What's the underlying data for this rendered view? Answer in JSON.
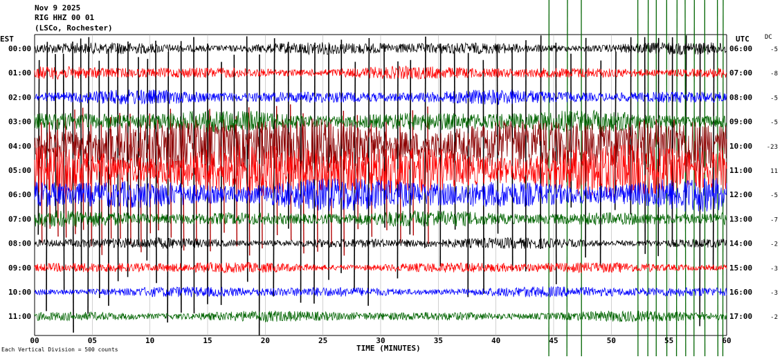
{
  "header": {
    "date": "Nov 9 2025",
    "station": "RIG HHZ 00 01",
    "location": "(LSCo, Rochester)"
  },
  "left_label": "EST",
  "right_label": "UTC",
  "dc_label": "DC",
  "footer_note": "Each Vertical Division = 500 counts",
  "chart_data": {
    "type": "line",
    "description_kind": "helicorder",
    "xlabel": "TIME (MINUTES)",
    "xlim": [
      0,
      60
    ],
    "x_ticks": [
      "00",
      "05",
      "10",
      "15",
      "20",
      "25",
      "30",
      "35",
      "40",
      "45",
      "50",
      "55",
      "60"
    ],
    "rows": [
      {
        "est": "00:00",
        "utc": "06:00",
        "dc": "-5",
        "color": "#000000",
        "amplitude": 0.35
      },
      {
        "est": "01:00",
        "utc": "07:00",
        "dc": "-8",
        "color": "#ff0000",
        "amplitude": 0.35
      },
      {
        "est": "02:00",
        "utc": "08:00",
        "dc": "-5",
        "color": "#0000ff",
        "amplitude": 0.4
      },
      {
        "est": "03:00",
        "utc": "09:00",
        "dc": "-5",
        "color": "#006400",
        "amplitude": 0.6
      },
      {
        "est": "04:00",
        "utc": "10:00",
        "dc": "-23",
        "color": "#8b0000",
        "amplitude": 1.6
      },
      {
        "est": "05:00",
        "utc": "11:00",
        "dc": "11",
        "color": "#ff0000",
        "amplitude": 1.5
      },
      {
        "est": "06:00",
        "utc": "12:00",
        "dc": "-5",
        "color": "#0000ff",
        "amplitude": 0.9
      },
      {
        "est": "07:00",
        "utc": "13:00",
        "dc": "-7",
        "color": "#006400",
        "amplitude": 0.45
      },
      {
        "est": "08:00",
        "utc": "14:00",
        "dc": "-2",
        "color": "#000000",
        "amplitude": 0.3
      },
      {
        "est": "09:00",
        "utc": "15:00",
        "dc": "-3",
        "color": "#ff0000",
        "amplitude": 0.3
      },
      {
        "est": "10:00",
        "utc": "16:00",
        "dc": "-3",
        "color": "#0000ff",
        "amplitude": 0.3
      },
      {
        "est": "11:00",
        "utc": "17:00",
        "dc": "-2",
        "color": "#006400",
        "amplitude": 0.3
      }
    ],
    "spike_minutes": [
      0.4,
      1.1,
      1.8,
      2.5,
      3.3,
      4.0,
      4.7,
      5.6,
      6.4,
      7.2,
      8.1,
      9.0,
      9.8,
      10.5,
      11.6,
      12.7,
      13.8,
      15.0,
      16.2,
      17.3,
      18.4,
      19.5,
      20.8,
      22.0,
      23.1,
      24.3,
      25.5,
      26.6,
      27.8,
      29.0,
      30.3,
      31.5,
      32.6,
      33.9,
      35.2,
      36.4,
      37.6,
      38.9,
      40.1,
      41.4,
      42.6,
      43.9,
      45.2,
      46.5,
      47.8,
      49.1,
      50.4,
      51.7,
      52.9,
      54.1,
      55.3,
      56.5,
      57.7,
      58.9
    ],
    "green_spike_minutes": [
      44.6,
      46.2,
      47.4,
      52.3,
      53.2,
      53.9,
      54.8,
      55.7,
      56.4,
      57.2,
      58.1,
      59.2,
      59.7
    ],
    "grid": true,
    "grid_step_minutes": 5
  }
}
